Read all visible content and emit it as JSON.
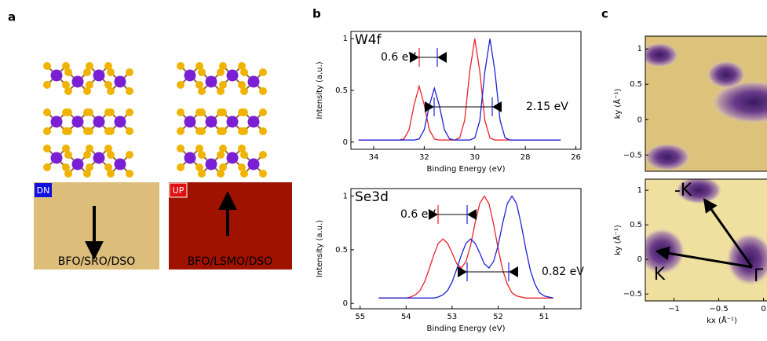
{
  "panel_labels": [
    "a",
    "b",
    "c"
  ],
  "panel_a": {
    "samples": [
      {
        "tag": "DN",
        "label": "BFO/SRO/DSO"
      },
      {
        "tag": "UP",
        "label": "BFO/LSMO/DSO"
      }
    ]
  },
  "chart_data": [
    {
      "type": "line",
      "title": "W4f",
      "xlabel": "Binding Energy (eV)",
      "ylabel": "Intensity (a.u.)",
      "x": [
        34.6,
        34.4,
        34.2,
        34,
        33.8,
        33.6,
        33.4,
        33.2,
        33,
        32.8,
        32.6,
        32.4,
        32.2,
        32,
        31.8,
        31.6,
        31.4,
        31.2,
        31,
        30.8,
        30.6,
        30.4,
        30.2,
        30,
        29.8,
        29.6,
        29.4,
        29.2,
        29,
        28.8,
        28.6,
        28.4,
        28.2,
        28,
        27.8,
        27.6,
        27.4,
        27.2,
        27,
        26.8,
        26.6
      ],
      "series": [
        {
          "color": "#e8232b",
          "values": [
            0.02,
            0.02,
            0.02,
            0.02,
            0.02,
            0.02,
            0.02,
            0.02,
            0.02,
            0.03,
            0.12,
            0.36,
            0.54,
            0.36,
            0.12,
            0.03,
            0.02,
            0.02,
            0.02,
            0.02,
            0.04,
            0.21,
            0.68,
            1.0,
            0.68,
            0.21,
            0.04,
            0.02,
            0.02,
            0.02,
            0.02,
            0.02,
            0.02,
            0.02,
            0.02,
            0.02,
            0.02,
            0.02,
            0.02,
            0.02,
            0.02
          ]
        },
        {
          "color": "#1f22d6",
          "values": [
            0.02,
            0.02,
            0.02,
            0.02,
            0.02,
            0.02,
            0.02,
            0.02,
            0.02,
            0.02,
            0.02,
            0.02,
            0.03,
            0.12,
            0.35,
            0.52,
            0.35,
            0.12,
            0.03,
            0.02,
            0.02,
            0.02,
            0.02,
            0.04,
            0.21,
            0.68,
            1.0,
            0.68,
            0.21,
            0.04,
            0.02,
            0.02,
            0.02,
            0.02,
            0.02,
            0.02,
            0.02,
            0.02,
            0.02,
            0.02,
            0.02
          ]
        }
      ],
      "xlim": [
        34.9,
        25.8
      ],
      "xticks": [
        34,
        32,
        30,
        28,
        26
      ],
      "ylim": [
        -0.07,
        1.07
      ],
      "yticks": [
        0,
        0.5,
        1
      ],
      "annotations": [
        "0.6 eV",
        "2.15 eV"
      ]
    },
    {
      "type": "line",
      "title": "Se3d",
      "xlabel": "Binding Energy (eV)",
      "ylabel": "Intensity (a.u.)",
      "x": [
        54.6,
        54.5,
        54.4,
        54.3,
        54.2,
        54.1,
        54,
        53.9,
        53.8,
        53.7,
        53.6,
        53.5,
        53.4,
        53.3,
        53.2,
        53.1,
        53,
        52.9,
        52.8,
        52.7,
        52.6,
        52.5,
        52.4,
        52.3,
        52.2,
        52.1,
        52,
        51.9,
        51.8,
        51.7,
        51.6,
        51.5,
        51.4,
        51.3,
        51.2,
        51.1,
        51,
        50.9,
        50.8
      ],
      "series": [
        {
          "color": "#e8232b",
          "values": [
            0.05,
            0.05,
            0.05,
            0.05,
            0.05,
            0.05,
            0.05,
            0.06,
            0.08,
            0.12,
            0.2,
            0.32,
            0.45,
            0.56,
            0.6,
            0.56,
            0.47,
            0.37,
            0.33,
            0.39,
            0.54,
            0.75,
            0.93,
            1.0,
            0.93,
            0.74,
            0.51,
            0.31,
            0.18,
            0.1,
            0.07,
            0.06,
            0.05,
            0.05,
            0.05,
            0.05,
            0.05,
            0.05,
            0.05
          ]
        },
        {
          "color": "#1f22d6",
          "values": [
            0.05,
            0.05,
            0.05,
            0.05,
            0.05,
            0.05,
            0.05,
            0.05,
            0.05,
            0.05,
            0.05,
            0.05,
            0.05,
            0.06,
            0.08,
            0.12,
            0.2,
            0.32,
            0.45,
            0.56,
            0.6,
            0.56,
            0.47,
            0.37,
            0.33,
            0.39,
            0.54,
            0.75,
            0.93,
            1.0,
            0.93,
            0.74,
            0.51,
            0.31,
            0.18,
            0.1,
            0.07,
            0.06,
            0.05
          ]
        }
      ],
      "xlim": [
        55.2,
        50.2
      ],
      "xticks": [
        55,
        54,
        53,
        52,
        51
      ],
      "ylim": [
        -0.05,
        1.07
      ],
      "yticks": [
        0,
        0.5,
        1
      ],
      "annotations": [
        "0.6 eV",
        "0.82 eV"
      ]
    },
    {
      "type": "image",
      "ylabel": "ky (Å⁻¹)",
      "xlim": [
        -1.32,
        0.24
      ],
      "ylim": [
        -0.73,
        1.18
      ],
      "yticks": [
        {
          "value": -0.5,
          "label": "−0.5"
        },
        0,
        0.5,
        1
      ]
    },
    {
      "type": "image",
      "ylabel": "ky (Å⁻¹)",
      "xlabel": "kx (Å⁻¹)",
      "xlim": [
        -1.32,
        0.24
      ],
      "ylim": [
        -0.6,
        1.16
      ],
      "xticks": [
        {
          "value": -1,
          "label": "−1"
        },
        {
          "value": -0.5,
          "label": "−0.5"
        },
        0
      ],
      "yticks": [
        {
          "value": -0.5,
          "label": "−0.5"
        },
        0,
        0.5,
        1
      ],
      "annotations": [
        "-K",
        "K",
        "Γ"
      ]
    }
  ]
}
